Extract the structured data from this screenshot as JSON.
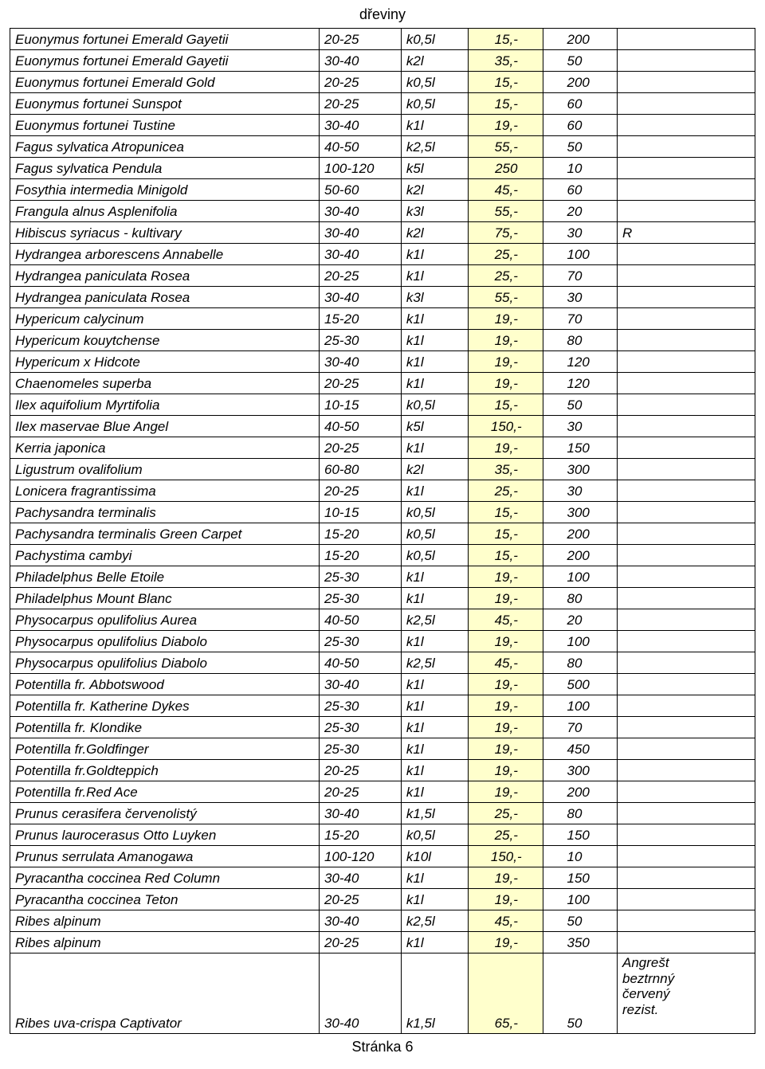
{
  "title": "dřeviny",
  "footer": "Stránka 6",
  "price_bg": "#ffffcc",
  "rows": [
    {
      "name": "Euonymus fortunei Emerald Gayetii",
      "size": "20-25",
      "pot": "k0,5l",
      "price": "15,-",
      "qty": "200",
      "note": ""
    },
    {
      "name": "Euonymus fortunei Emerald Gayetii",
      "size": "30-40",
      "pot": "k2l",
      "price": "35,-",
      "qty": "50",
      "note": ""
    },
    {
      "name": "Euonymus fortunei Emerald Gold",
      "size": "20-25",
      "pot": "k0,5l",
      "price": "15,-",
      "qty": "200",
      "note": ""
    },
    {
      "name": "Euonymus fortunei Sunspot",
      "size": "20-25",
      "pot": "k0,5l",
      "price": "15,-",
      "qty": "60",
      "note": ""
    },
    {
      "name": "Euonymus fortunei Tustine",
      "size": "30-40",
      "pot": "k1l",
      "price": "19,-",
      "qty": "60",
      "note": ""
    },
    {
      "name": "Fagus sylvatica Atropunicea",
      "size": "40-50",
      "pot": "k2,5l",
      "price": "55,-",
      "qty": "50",
      "note": ""
    },
    {
      "name": "Fagus sylvatica Pendula",
      "size": "100-120",
      "pot": "k5l",
      "price": "250",
      "qty": "10",
      "note": ""
    },
    {
      "name": "Fosythia  intermedia Minigold",
      "size": "50-60",
      "pot": "k2l",
      "price": "45,-",
      "qty": "60",
      "note": ""
    },
    {
      "name": "Frangula alnus Asplenifolia",
      "size": "30-40",
      "pot": "k3l",
      "price": "55,-",
      "qty": "20",
      "note": ""
    },
    {
      "name": "Hibiscus syriacus - kultivary",
      "size": "30-40",
      "pot": "k2l",
      "price": "75,-",
      "qty": "30",
      "note": "R"
    },
    {
      "name": "Hydrangea arborescens Annabelle",
      "size": "30-40",
      "pot": "k1l",
      "price": "25,-",
      "qty": "100",
      "note": ""
    },
    {
      "name": "Hydrangea paniculata Rosea",
      "size": "20-25",
      "pot": "k1l",
      "price": "25,-",
      "qty": "70",
      "note": ""
    },
    {
      "name": "Hydrangea paniculata Rosea",
      "size": "30-40",
      "pot": "k3l",
      "price": "55,-",
      "qty": "30",
      "note": ""
    },
    {
      "name": "Hypericum calycinum",
      "size": "15-20",
      "pot": "k1l",
      "price": "19,-",
      "qty": "70",
      "note": ""
    },
    {
      "name": "Hypericum kouytchense",
      "size": "25-30",
      "pot": "k1l",
      "price": "19,-",
      "qty": "80",
      "note": ""
    },
    {
      "name": "Hypericum x Hidcote",
      "size": "30-40",
      "pot": "k1l",
      "price": "19,-",
      "qty": "120",
      "note": ""
    },
    {
      "name": "Chaenomeles superba",
      "size": "20-25",
      "pot": "k1l",
      "price": "19,-",
      "qty": "120",
      "note": ""
    },
    {
      "name": "Ilex aquifolium Myrtifolia",
      "size": "10-15",
      "pot": "k0,5l",
      "price": "15,-",
      "qty": "50",
      "note": ""
    },
    {
      "name": "Ilex maservae Blue Angel",
      "size": "40-50",
      "pot": "k5l",
      "price": "150,-",
      "qty": "30",
      "note": ""
    },
    {
      "name": "Kerria japonica",
      "size": "20-25",
      "pot": "k1l",
      "price": "19,-",
      "qty": "150",
      "note": ""
    },
    {
      "name": "Ligustrum ovalifolium",
      "size": "60-80",
      "pot": "k2l",
      "price": "35,-",
      "qty": "300",
      "note": ""
    },
    {
      "name": "Lonicera fragrantissima",
      "size": "20-25",
      "pot": "k1l",
      "price": "25,-",
      "qty": "30",
      "note": ""
    },
    {
      "name": "Pachysandra terminalis",
      "size": "10-15",
      "pot": "k0,5l",
      "price": "15,-",
      "qty": "300",
      "note": ""
    },
    {
      "name": "Pachysandra terminalis Green Carpet",
      "size": "15-20",
      "pot": "k0,5l",
      "price": "15,-",
      "qty": "200",
      "note": ""
    },
    {
      "name": "Pachystima cambyi",
      "size": "15-20",
      "pot": "k0,5l",
      "price": "15,-",
      "qty": "200",
      "note": ""
    },
    {
      "name": "Philadelphus Belle Etoile",
      "size": "25-30",
      "pot": "k1l",
      "price": "19,-",
      "qty": "100",
      "note": ""
    },
    {
      "name": "Philadelphus Mount Blanc",
      "size": "25-30",
      "pot": "k1l",
      "price": "19,-",
      "qty": "80",
      "note": ""
    },
    {
      "name": "Physocarpus opulifolius Aurea",
      "size": "40-50",
      "pot": "k2,5l",
      "price": "45,-",
      "qty": "20",
      "note": ""
    },
    {
      "name": "Physocarpus opulifolius Diabolo",
      "size": "25-30",
      "pot": "k1l",
      "price": "19,-",
      "qty": "100",
      "note": ""
    },
    {
      "name": "Physocarpus opulifolius Diabolo",
      "size": "40-50",
      "pot": "k2,5l",
      "price": "45,-",
      "qty": "80",
      "note": ""
    },
    {
      "name": "Potentilla fr. Abbotswood",
      "size": "30-40",
      "pot": "k1l",
      "price": "19,-",
      "qty": "500",
      "note": ""
    },
    {
      "name": "Potentilla fr. Katherine Dykes",
      "size": "25-30",
      "pot": "k1l",
      "price": "19,-",
      "qty": "100",
      "note": ""
    },
    {
      "name": "Potentilla fr. Klondike",
      "size": "25-30",
      "pot": "k1l",
      "price": "19,-",
      "qty": "70",
      "note": ""
    },
    {
      "name": "Potentilla fr.Goldfinger",
      "size": "25-30",
      "pot": "k1l",
      "price": "19,-",
      "qty": "450",
      "note": ""
    },
    {
      "name": "Potentilla fr.Goldteppich",
      "size": "20-25",
      "pot": "k1l",
      "price": "19,-",
      "qty": "300",
      "note": ""
    },
    {
      "name": "Potentilla fr.Red Ace",
      "size": "20-25",
      "pot": "k1l",
      "price": "19,-",
      "qty": "200",
      "note": ""
    },
    {
      "name": "Prunus cerasifera červenolistý",
      "size": "30-40",
      "pot": "k1,5l",
      "price": "25,-",
      "qty": "80",
      "note": ""
    },
    {
      "name": "Prunus laurocerasus Otto Luyken",
      "size": "15-20",
      "pot": "k0,5l",
      "price": "25,-",
      "qty": "150",
      "note": ""
    },
    {
      "name": "Prunus serrulata Amanogawa",
      "size": "100-120",
      "pot": "k10l",
      "price": "150,-",
      "qty": "10",
      "note": ""
    },
    {
      "name": "Pyracantha coccinea Red Column",
      "size": "30-40",
      "pot": "k1l",
      "price": "19,-",
      "qty": "150",
      "note": ""
    },
    {
      "name": "Pyracantha coccinea Teton",
      "size": "20-25",
      "pot": "k1l",
      "price": "19,-",
      "qty": "100",
      "note": ""
    },
    {
      "name": "Ribes alpinum",
      "size": "30-40",
      "pot": "k2,5l",
      "price": "45,-",
      "qty": "50",
      "note": ""
    },
    {
      "name": "Ribes alpinum",
      "size": "20-25",
      "pot": "k1l",
      "price": "19,-",
      "qty": "350",
      "note": ""
    },
    {
      "name": "Ribes uva-crispa Captivator",
      "size": "30-40",
      "pot": "k1,5l",
      "price": "65,-",
      "qty": "50",
      "note": "Angrešt beztrnný červený rezist.",
      "tall": true
    }
  ]
}
